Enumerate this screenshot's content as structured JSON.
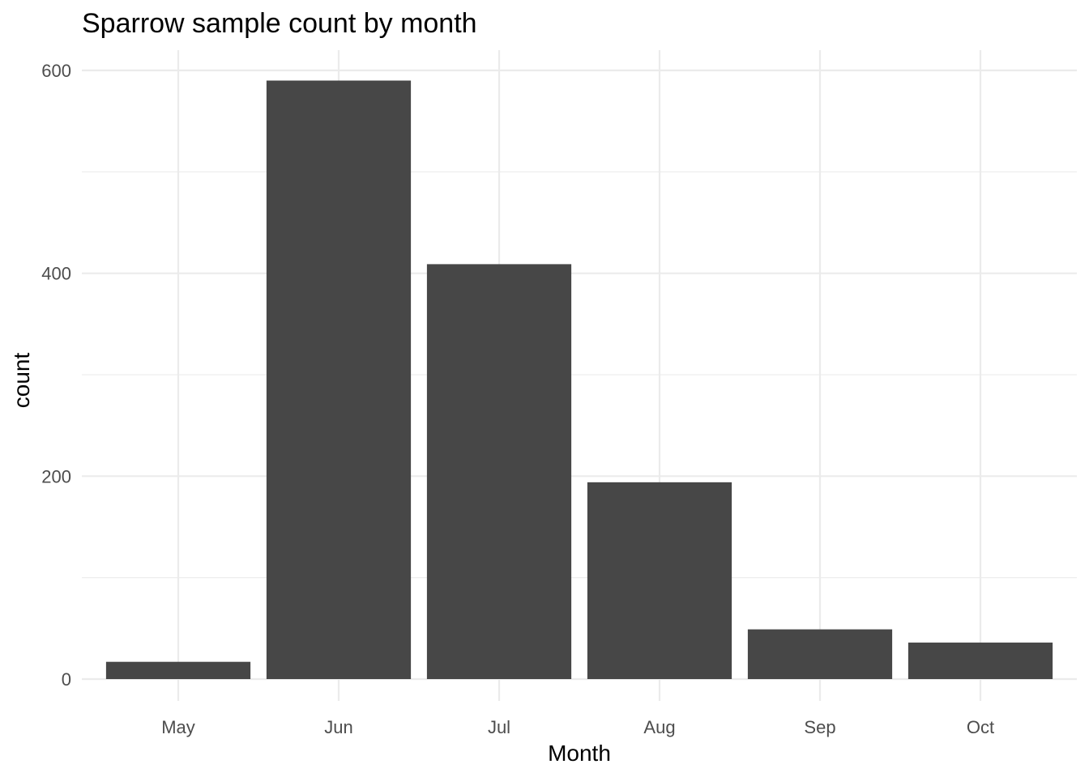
{
  "chart_data": {
    "type": "bar",
    "title": "Sparrow sample count by month",
    "xlabel": "Month",
    "ylabel": "count",
    "categories": [
      "May",
      "Jun",
      "Jul",
      "Aug",
      "Sep",
      "Oct"
    ],
    "values": [
      17,
      590,
      409,
      194,
      49,
      36
    ],
    "ylim": [
      0,
      620
    ],
    "yticks": [
      0,
      200,
      400,
      600
    ],
    "grid": true,
    "bar_color": "#474747",
    "grid_color": "#ebebeb"
  }
}
